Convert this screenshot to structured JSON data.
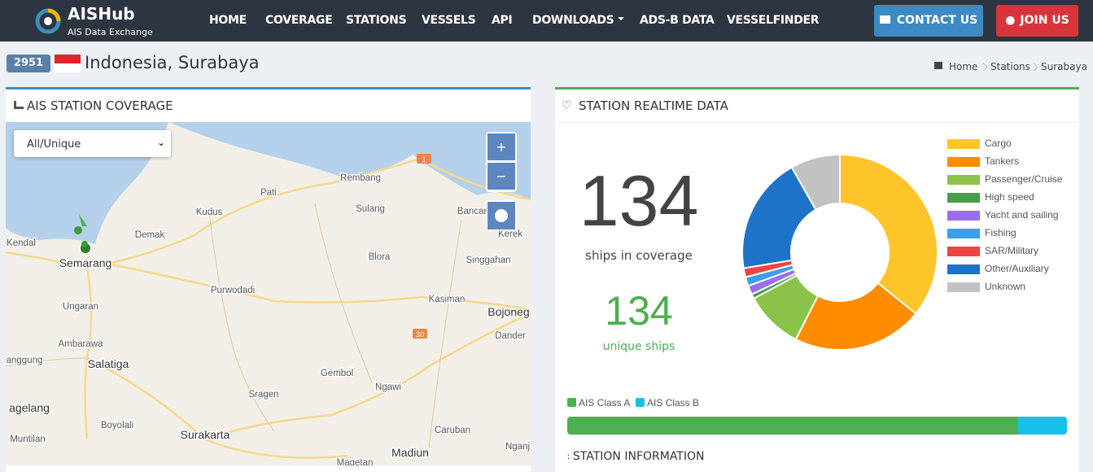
{
  "nav": {
    "logo": "AISHub",
    "tagline": "AIS Data Exchange",
    "links": [
      "HOME",
      "COVERAGE",
      "STATIONS",
      "VESSELS",
      "API",
      "DOWNLOADS",
      "ADS-B DATA",
      "VESSELFINDER"
    ],
    "contact": "CONTACT US",
    "join": "JOIN US"
  },
  "page": {
    "station_id": "2951",
    "title": "Indonesia, Surabaya",
    "breadcrumb": [
      "Home",
      "Stations",
      "Surabaya"
    ]
  },
  "coverage": {
    "title": "AIS STATION COVERAGE",
    "filter": "All/Unique",
    "zoom_in": "+",
    "zoom_out": "−",
    "map_labels": [
      "Rembang",
      "Pati",
      "Kudus",
      "Demak",
      "Sulang",
      "Bancar",
      "Kerek",
      "Kendal",
      "Semarang",
      "Blora",
      "Singgahan",
      "Purwodadi",
      "Ungaran",
      "Kasiman",
      "Bojoneg",
      "Dander",
      "Ambarawa",
      "Salatiga",
      "anggung",
      "Gembol",
      "Ngawi",
      "Sragen",
      "agelang",
      "Boyolali",
      "Caruban",
      "Surakarta",
      "Muntilan",
      "Madiun",
      "Nganj",
      "Magetan"
    ],
    "road_shields": [
      "1",
      "30"
    ]
  },
  "realtime": {
    "title": "STATION REALTIME DATA",
    "ships": 134,
    "ships_label": "ships in coverage",
    "unique": 134,
    "unique_label": "unique ships"
  },
  "chart_data": [
    {
      "type": "donut",
      "categories": [
        "Cargo",
        "Tankers",
        "Passenger/Cruise",
        "High speed",
        "Yacht and sailing",
        "Fishing",
        "SAR/Military",
        "Other/Auxiliary",
        "Unknown"
      ],
      "values": [
        48,
        29,
        13,
        1,
        2,
        2,
        2,
        26,
        11
      ],
      "colors": [
        "#fdc52a",
        "#fd8c00",
        "#8bc34a",
        "#43a047",
        "#9c6cf2",
        "#3aa0e8",
        "#ee4440",
        "#1e73c8",
        "#c2c2c2"
      ]
    },
    {
      "type": "stacked-bar",
      "series": [
        {
          "name": "AIS Class A",
          "color": "#4caf50",
          "values": [
            121
          ]
        },
        {
          "name": "AIS Class B",
          "color": "#17c0eb",
          "values": [
            13
          ]
        }
      ]
    }
  ],
  "info_title": "STATION INFORMATION"
}
